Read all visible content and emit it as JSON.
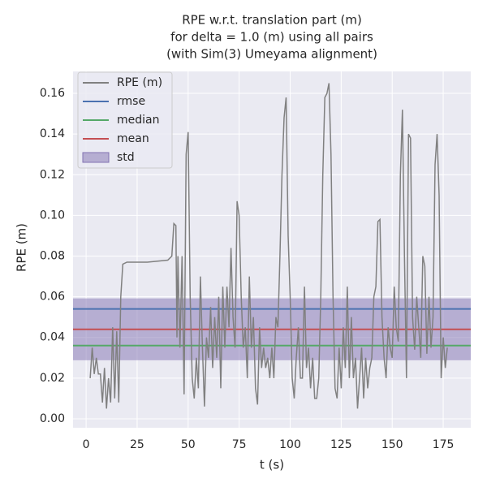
{
  "chart_data": {
    "type": "line",
    "title": [
      "RPE w.r.t. translation part (m)",
      "for delta = 1.0 (m) using all pairs",
      "(with Sim(3) Umeyama alignment)"
    ],
    "xlabel": "t (s)",
    "ylabel": "RPE (m)",
    "xlim": [
      -6.4,
      188.5
    ],
    "ylim": [
      -0.0044,
      0.1708
    ],
    "xticks": [
      0,
      25,
      50,
      75,
      100,
      125,
      150,
      175
    ],
    "yticks": [
      {
        "value": 0,
        "label": "0.00"
      },
      0.02,
      0.04,
      0.06,
      0.08,
      {
        "value": 0.1,
        "label": "0.10"
      },
      0.12,
      0.14,
      0.16
    ],
    "grid": true,
    "legend": "upper left",
    "series": [
      {
        "name": "RPE (m)",
        "color": "#808080",
        "x": [
          2,
          3,
          4,
          5,
          6,
          7,
          8,
          9,
          10,
          11,
          12,
          13,
          14,
          15,
          16,
          17,
          18,
          20,
          30,
          40,
          42,
          43,
          44,
          44.5,
          45,
          46,
          47,
          48,
          49,
          50,
          51,
          52,
          53,
          54,
          55,
          56,
          57,
          58,
          59,
          60,
          61,
          62,
          63,
          64,
          65,
          66,
          67,
          68,
          69,
          70,
          71,
          72,
          73,
          74,
          75,
          76,
          77,
          78,
          79,
          80,
          81,
          82,
          83,
          84,
          85,
          86,
          87,
          88,
          89,
          90,
          91,
          92,
          93,
          94,
          95,
          96,
          97,
          98,
          99,
          100,
          101,
          102,
          103,
          104,
          105,
          106,
          107,
          108,
          109,
          110,
          111,
          112,
          113,
          114,
          115,
          116,
          117,
          118,
          119,
          120,
          121,
          122,
          123,
          124,
          125,
          126,
          127,
          128,
          129,
          130,
          131,
          132,
          133,
          134,
          135,
          136,
          137,
          138,
          139,
          140,
          141,
          142,
          143,
          144,
          145,
          146,
          147,
          148,
          149,
          150,
          151,
          152,
          153,
          154,
          155,
          156,
          157,
          158,
          159,
          160,
          161,
          162,
          163,
          164,
          165,
          166,
          167,
          168,
          169,
          170,
          171,
          172,
          173,
          174,
          175,
          176,
          177
        ],
        "values": [
          0.02,
          0.035,
          0.022,
          0.03,
          0.022,
          0.022,
          0.008,
          0.025,
          0.005,
          0.02,
          0.008,
          0.045,
          0.01,
          0.043,
          0.008,
          0.06,
          0.076,
          0.077,
          0.077,
          0.078,
          0.08,
          0.096,
          0.095,
          0.04,
          0.08,
          0.035,
          0.08,
          0.012,
          0.13,
          0.141,
          0.06,
          0.02,
          0.01,
          0.03,
          0.015,
          0.07,
          0.035,
          0.006,
          0.04,
          0.03,
          0.055,
          0.025,
          0.05,
          0.03,
          0.06,
          0.015,
          0.065,
          0.035,
          0.065,
          0.045,
          0.084,
          0.05,
          0.035,
          0.107,
          0.1,
          0.06,
          0.035,
          0.045,
          0.02,
          0.07,
          0.035,
          0.05,
          0.015,
          0.007,
          0.045,
          0.025,
          0.035,
          0.025,
          0.03,
          0.02,
          0.035,
          0.02,
          0.05,
          0.045,
          0.08,
          0.12,
          0.148,
          0.158,
          0.09,
          0.06,
          0.02,
          0.01,
          0.03,
          0.045,
          0.02,
          0.02,
          0.065,
          0.025,
          0.035,
          0.015,
          0.03,
          0.01,
          0.01,
          0.02,
          0.06,
          0.12,
          0.158,
          0.16,
          0.165,
          0.13,
          0.06,
          0.015,
          0.01,
          0.035,
          0.015,
          0.045,
          0.025,
          0.065,
          0.02,
          0.05,
          0.02,
          0.03,
          0.005,
          0.02,
          0.035,
          0.01,
          0.03,
          0.015,
          0.025,
          0.03,
          0.06,
          0.065,
          0.097,
          0.098,
          0.05,
          0.03,
          0.02,
          0.045,
          0.035,
          0.03,
          0.065,
          0.045,
          0.038,
          0.12,
          0.152,
          0.08,
          0.02,
          0.14,
          0.138,
          0.05,
          0.034,
          0.06,
          0.045,
          0.03,
          0.08,
          0.075,
          0.032,
          0.06,
          0.035,
          0.05,
          0.125,
          0.14,
          0.11,
          0.02,
          0.04,
          0.025,
          0.035
        ]
      }
    ],
    "stats": [
      {
        "name": "rmse",
        "color": "#4c72b0",
        "value": 0.054
      },
      {
        "name": "median",
        "color": "#55a868",
        "value": 0.036
      },
      {
        "name": "mean",
        "color": "#c44e52",
        "value": 0.044
      }
    ],
    "std": {
      "name": "std",
      "color": "#8172b2",
      "value": 0.0152
    }
  }
}
